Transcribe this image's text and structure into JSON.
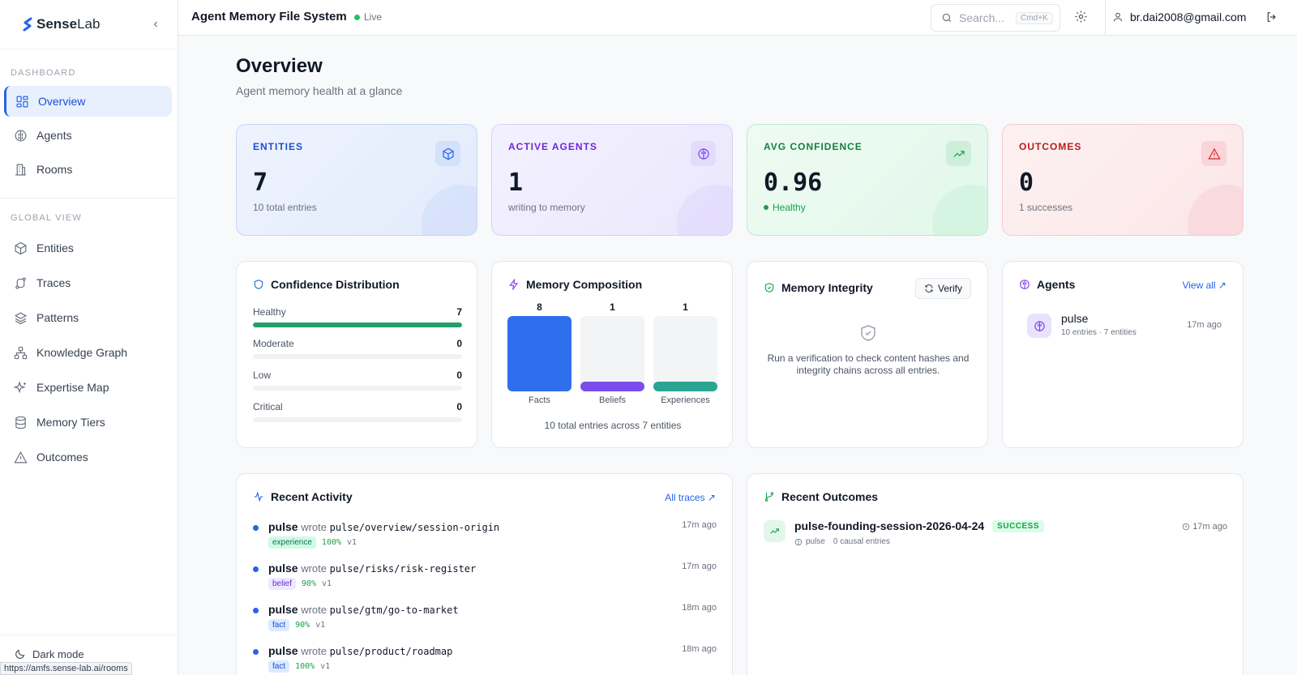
{
  "brand": {
    "name_a": "Sense",
    "name_b": "Lab"
  },
  "sidebar": {
    "section_dashboard": "DASHBOARD",
    "section_global": "GLOBAL VIEW",
    "items": [
      {
        "label": "Overview"
      },
      {
        "label": "Agents"
      },
      {
        "label": "Rooms"
      },
      {
        "label": "Entities"
      },
      {
        "label": "Traces"
      },
      {
        "label": "Patterns"
      },
      {
        "label": "Knowledge Graph"
      },
      {
        "label": "Expertise Map"
      },
      {
        "label": "Memory Tiers"
      },
      {
        "label": "Outcomes"
      }
    ],
    "dark_mode": "Dark mode",
    "status_url": "https://amfs.sense-lab.ai/rooms"
  },
  "topbar": {
    "title": "Agent Memory File System",
    "live": "Live",
    "search_placeholder": "Search...",
    "search_shortcut": "Cmd+K",
    "user_email": "br.dai2008@gmail.com"
  },
  "page": {
    "title": "Overview",
    "subtitle": "Agent memory health at a glance"
  },
  "stats": [
    {
      "label": "ENTITIES",
      "value": "7",
      "hint": "10 total entries",
      "icon": "cube-icon"
    },
    {
      "label": "ACTIVE AGENTS",
      "value": "1",
      "hint": "writing to memory",
      "icon": "brain-icon"
    },
    {
      "label": "AVG CONFIDENCE",
      "value": "0.96",
      "hint": "Healthy",
      "icon": "trending-up-icon"
    },
    {
      "label": "OUTCOMES",
      "value": "0",
      "hint": "1 successes",
      "icon": "alert-triangle-icon"
    }
  ],
  "confidence": {
    "title": "Confidence Distribution",
    "rows": [
      {
        "label": "Healthy",
        "count": "7",
        "fraction": 1.0
      },
      {
        "label": "Moderate",
        "count": "0",
        "fraction": 0
      },
      {
        "label": "Low",
        "count": "0",
        "fraction": 0
      },
      {
        "label": "Critical",
        "count": "0",
        "fraction": 0
      }
    ]
  },
  "composition": {
    "title": "Memory Composition",
    "columns": [
      {
        "label": "Facts",
        "count": "8",
        "color": "#2f6fed"
      },
      {
        "label": "Beliefs",
        "count": "1",
        "color": "#7c4dec"
      },
      {
        "label": "Experiences",
        "count": "1",
        "color": "#2aa592"
      }
    ],
    "footer": "10 total entries across 7 entities"
  },
  "integrity": {
    "title": "Memory Integrity",
    "verify_label": "Verify",
    "message": "Run a verification to check content hashes and integrity chains across all entries."
  },
  "agents": {
    "title": "Agents",
    "view_all": "View all ↗",
    "list": [
      {
        "name": "pulse",
        "meta": "10 entries · 7 entities",
        "time": "17m ago"
      }
    ]
  },
  "activity": {
    "title": "Recent Activity",
    "link": "All traces ↗",
    "items": [
      {
        "agent": "pulse",
        "verb": "wrote",
        "path": "pulse/overview/session-origin",
        "time": "17m ago",
        "tag": "experience",
        "pct": "100%",
        "ver": "v1"
      },
      {
        "agent": "pulse",
        "verb": "wrote",
        "path": "pulse/risks/risk-register",
        "time": "17m ago",
        "tag": "belief",
        "pct": "90%",
        "ver": "v1"
      },
      {
        "agent": "pulse",
        "verb": "wrote",
        "path": "pulse/gtm/go-to-market",
        "time": "18m ago",
        "tag": "fact",
        "pct": "90%",
        "ver": "v1"
      },
      {
        "agent": "pulse",
        "verb": "wrote",
        "path": "pulse/product/roadmap",
        "time": "18m ago",
        "tag": "fact",
        "pct": "100%",
        "ver": "v1"
      }
    ]
  },
  "outcomes": {
    "title": "Recent Outcomes",
    "items": [
      {
        "name": "pulse-founding-session-2026-04-24",
        "status": "SUCCESS",
        "agent": "pulse",
        "causal": "0 causal entries",
        "time": "17m ago"
      }
    ]
  }
}
